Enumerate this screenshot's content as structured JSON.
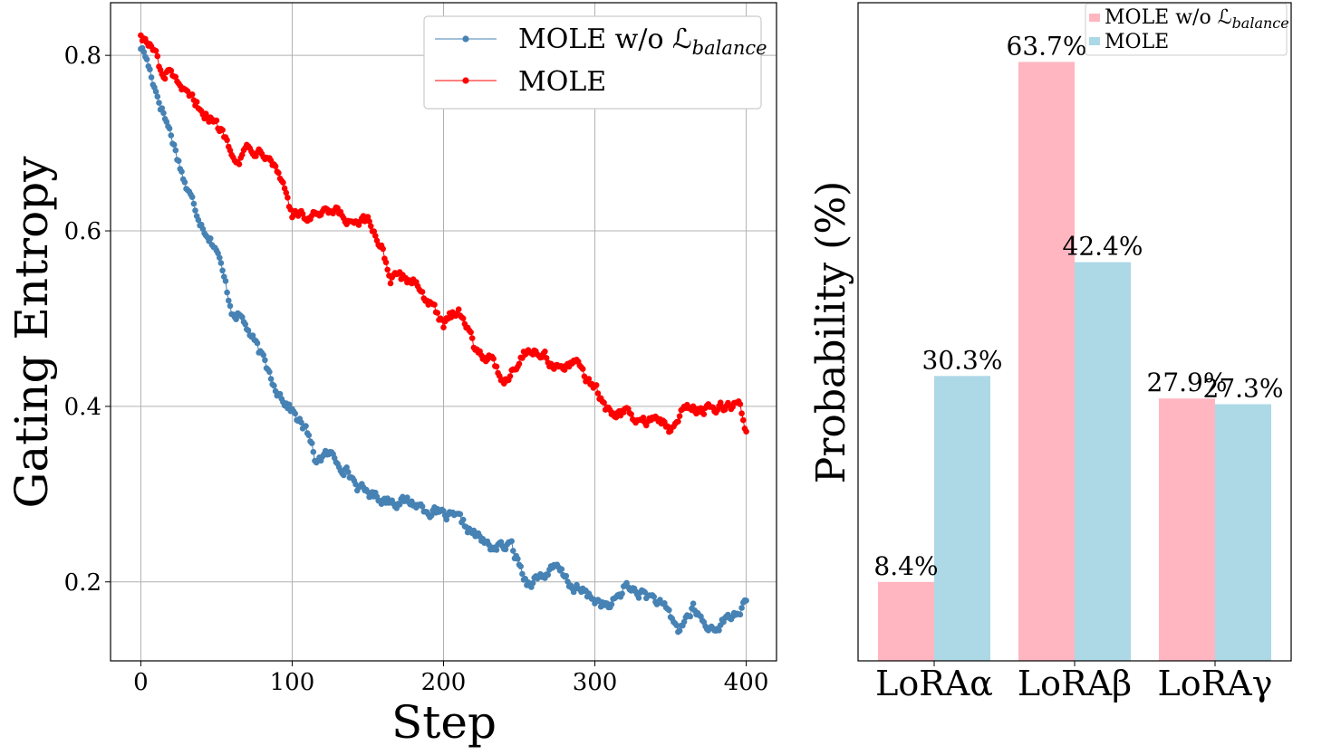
{
  "chart_data": [
    {
      "type": "line",
      "title": "",
      "xlabel": "Step",
      "ylabel": "Gating Entropy",
      "xlim": [
        -20,
        420
      ],
      "ylim": [
        0.11,
        0.86
      ],
      "x_ticks": [
        0,
        100,
        200,
        300,
        400
      ],
      "y_ticks": [
        0.2,
        0.4,
        0.6,
        0.8
      ],
      "grid": true,
      "legend_position": "top-right",
      "series": [
        {
          "name": "MOLE w/o ℒ",
          "name_subscript": "balance",
          "color": "#4682b4",
          "marker": "circle",
          "keypoints": [
            [
              0,
              0.81
            ],
            [
              3,
              0.8
            ],
            [
              10,
              0.76
            ],
            [
              20,
              0.71
            ],
            [
              30,
              0.65
            ],
            [
              40,
              0.61
            ],
            [
              50,
              0.58
            ],
            [
              60,
              0.51
            ],
            [
              65,
              0.505
            ],
            [
              70,
              0.49
            ],
            [
              80,
              0.455
            ],
            [
              90,
              0.42
            ],
            [
              100,
              0.395
            ],
            [
              110,
              0.37
            ],
            [
              115,
              0.34
            ],
            [
              125,
              0.345
            ],
            [
              135,
              0.33
            ],
            [
              145,
              0.305
            ],
            [
              160,
              0.295
            ],
            [
              180,
              0.29
            ],
            [
              200,
              0.275
            ],
            [
              210,
              0.27
            ],
            [
              220,
              0.255
            ],
            [
              230,
              0.24
            ],
            [
              245,
              0.24
            ],
            [
              255,
              0.2
            ],
            [
              275,
              0.215
            ],
            [
              285,
              0.195
            ],
            [
              300,
              0.18
            ],
            [
              310,
              0.17
            ],
            [
              320,
              0.195
            ],
            [
              340,
              0.18
            ],
            [
              350,
              0.16
            ],
            [
              355,
              0.145
            ],
            [
              365,
              0.17
            ],
            [
              375,
              0.145
            ],
            [
              380,
              0.15
            ],
            [
              390,
              0.16
            ],
            [
              400,
              0.175
            ]
          ]
        },
        {
          "name": "MOLE",
          "color": "#ff0000",
          "marker": "circle",
          "keypoints": [
            [
              0,
              0.825
            ],
            [
              10,
              0.8
            ],
            [
              15,
              0.77
            ],
            [
              20,
              0.785
            ],
            [
              25,
              0.76
            ],
            [
              40,
              0.74
            ],
            [
              50,
              0.72
            ],
            [
              55,
              0.71
            ],
            [
              60,
              0.695
            ],
            [
              65,
              0.68
            ],
            [
              70,
              0.695
            ],
            [
              85,
              0.69
            ],
            [
              95,
              0.65
            ],
            [
              100,
              0.62
            ],
            [
              110,
              0.615
            ],
            [
              130,
              0.62
            ],
            [
              140,
              0.605
            ],
            [
              150,
              0.61
            ],
            [
              160,
              0.58
            ],
            [
              165,
              0.545
            ],
            [
              180,
              0.545
            ],
            [
              190,
              0.52
            ],
            [
              200,
              0.49
            ],
            [
              210,
              0.515
            ],
            [
              220,
              0.47
            ],
            [
              230,
              0.455
            ],
            [
              240,
              0.43
            ],
            [
              255,
              0.465
            ],
            [
              265,
              0.46
            ],
            [
              275,
              0.445
            ],
            [
              290,
              0.445
            ],
            [
              300,
              0.42
            ],
            [
              310,
              0.39
            ],
            [
              320,
              0.395
            ],
            [
              330,
              0.38
            ],
            [
              340,
              0.39
            ],
            [
              350,
              0.37
            ],
            [
              360,
              0.4
            ],
            [
              380,
              0.395
            ],
            [
              395,
              0.405
            ],
            [
              400,
              0.37
            ]
          ]
        }
      ]
    },
    {
      "type": "bar",
      "title": "",
      "xlabel": "",
      "ylabel": "Probability (%)",
      "ylim": [
        0,
        70
      ],
      "grid": false,
      "legend_position": "top-right",
      "categories": [
        "LoRAα",
        "LoRAβ",
        "LoRAγ"
      ],
      "series": [
        {
          "name": "MOLE w/o ℒ",
          "name_subscript": "balance",
          "color": "#ffb6c1",
          "values": [
            8.4,
            63.7,
            27.9
          ],
          "labels": [
            "8.4%",
            "63.7%",
            "27.9%"
          ]
        },
        {
          "name": "MOLE",
          "color": "#add8e6",
          "values": [
            30.3,
            42.4,
            27.3
          ],
          "labels": [
            "30.3%",
            "42.4%",
            "27.3%"
          ]
        }
      ]
    }
  ]
}
